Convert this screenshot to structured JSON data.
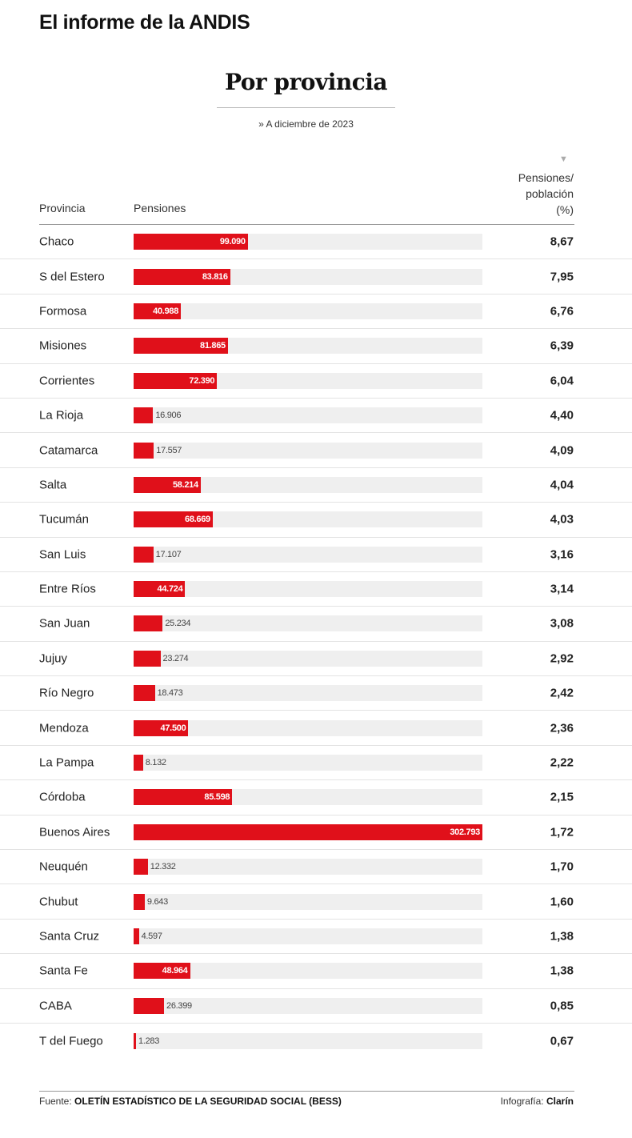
{
  "heading": "El informe de la ANDIS",
  "chart_data": {
    "type": "bar",
    "title": "Por provincia",
    "subtitle": "» A diciembre de 2023",
    "columns": {
      "provincia": "Provincia",
      "pensiones": "Pensiones",
      "ratio": [
        "Pensiones/",
        "población",
        "(%)"
      ]
    },
    "xlim": [
      0,
      302793
    ],
    "categories": [
      "Chaco",
      "S del Estero",
      "Formosa",
      "Misiones",
      "Corrientes",
      "La Rioja",
      "Catamarca",
      "Salta",
      "Tucumán",
      "San Luis",
      "Entre Ríos",
      "San Juan",
      "Jujuy",
      "Río Negro",
      "Mendoza",
      "La Pampa",
      "Córdoba",
      "Buenos Aires",
      "Neuquén",
      "Chubut",
      "Santa Cruz",
      "Santa Fe",
      "CABA",
      "T del Fuego"
    ],
    "series": [
      {
        "name": "Pensiones",
        "values": [
          99090,
          83816,
          40988,
          81865,
          72390,
          16906,
          17557,
          58214,
          68669,
          17107,
          44724,
          25234,
          23274,
          18473,
          47500,
          8132,
          85598,
          302793,
          12332,
          9643,
          4597,
          48964,
          26399,
          1283
        ],
        "labels": [
          "99.090",
          "83.816",
          "40.988",
          "81.865",
          "72.390",
          "16.906",
          "17.557",
          "58.214",
          "68.669",
          "17.107",
          "44.724",
          "25.234",
          "23.274",
          "18.473",
          "47.500",
          "8.132",
          "85.598",
          "302.793",
          "12.332",
          "9.643",
          "4.597",
          "48.964",
          "26.399",
          "1.283"
        ]
      },
      {
        "name": "Pensiones/población (%)",
        "values": [
          8.67,
          7.95,
          6.76,
          6.39,
          6.04,
          4.4,
          4.09,
          4.04,
          4.03,
          3.16,
          3.14,
          3.08,
          2.92,
          2.42,
          2.36,
          2.22,
          2.15,
          1.72,
          1.7,
          1.6,
          1.38,
          1.38,
          0.85,
          0.67
        ],
        "labels": [
          "8,67",
          "7,95",
          "6,76",
          "6,39",
          "6,04",
          "4,40",
          "4,09",
          "4,04",
          "4,03",
          "3,16",
          "3,14",
          "3,08",
          "2,92",
          "2,42",
          "2,36",
          "2,22",
          "2,15",
          "1,72",
          "1,70",
          "1,60",
          "1,38",
          "1,38",
          "0,85",
          "0,67"
        ]
      }
    ],
    "colors": {
      "bar": "#e0101a",
      "track": "#efefef"
    }
  },
  "footer": {
    "source_label": "Fuente:",
    "source": "OLETÍN ESTADÍSTICO DE LA SEGURIDAD SOCIAL (BESS)",
    "credit_label": "Infografía:",
    "credit": "Clarín"
  }
}
